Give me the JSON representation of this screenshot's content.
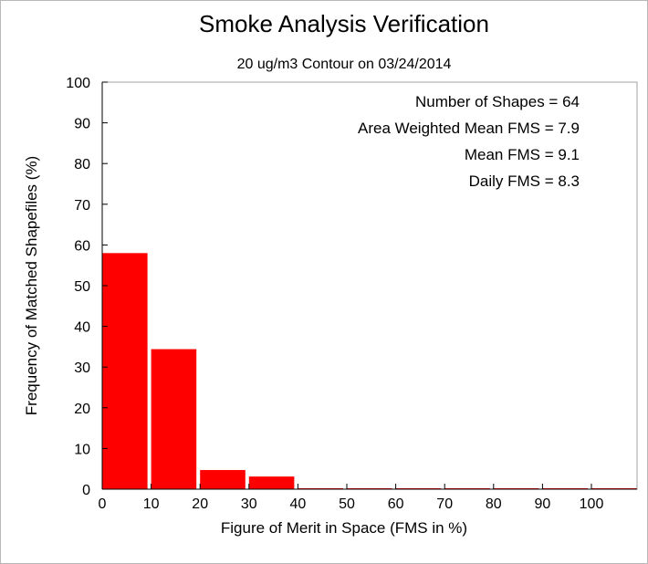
{
  "chart_data": {
    "type": "bar",
    "title": "Smoke Analysis Verification",
    "subtitle": "20 ug/m3 Contour on 03/24/2014",
    "xlabel": "Figure of Merit in Space (FMS in %)",
    "ylabel": "Frequency of Matched Shapefiles (%)",
    "xlim": [
      0,
      110
    ],
    "ylim": [
      0,
      100
    ],
    "xticks": [
      0,
      10,
      20,
      30,
      40,
      50,
      60,
      70,
      80,
      90,
      100
    ],
    "yticks": [
      0,
      10,
      20,
      30,
      40,
      50,
      60,
      70,
      80,
      90,
      100
    ],
    "bins": [
      {
        "start": 0,
        "end": 10,
        "value": 58
      },
      {
        "start": 10,
        "end": 20,
        "value": 34.4
      },
      {
        "start": 20,
        "end": 30,
        "value": 4.7
      },
      {
        "start": 30,
        "end": 40,
        "value": 3.1
      },
      {
        "start": 40,
        "end": 50,
        "value": 0
      },
      {
        "start": 50,
        "end": 60,
        "value": 0
      },
      {
        "start": 60,
        "end": 70,
        "value": 0
      },
      {
        "start": 70,
        "end": 80,
        "value": 0
      },
      {
        "start": 80,
        "end": 90,
        "value": 0
      },
      {
        "start": 90,
        "end": 100,
        "value": 0
      },
      {
        "start": 100,
        "end": 110,
        "value": 0
      }
    ],
    "bar_color": "#ff0000",
    "stats": [
      "Number of Shapes = 64",
      "Area Weighted Mean FMS = 7.9",
      "Mean FMS = 9.1",
      "Daily FMS = 8.3"
    ],
    "grid": false
  }
}
